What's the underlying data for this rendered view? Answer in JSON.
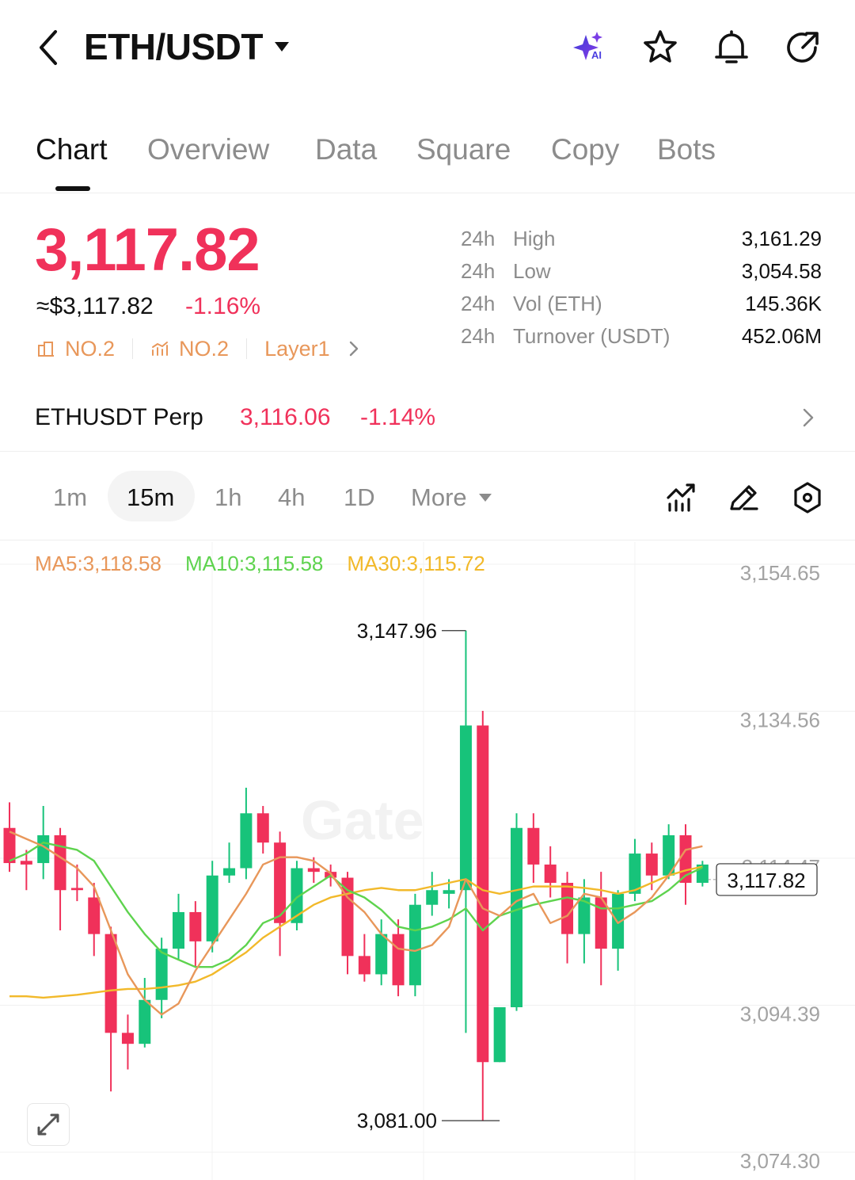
{
  "header": {
    "pair": "ETH/USDT",
    "icons": [
      "back-arrow-icon",
      "caret-down-icon",
      "ai-sparkle-icon",
      "star-icon",
      "bell-icon",
      "share-icon"
    ],
    "ai_badge": "AI"
  },
  "tabs": [
    {
      "label": "Chart",
      "active": true
    },
    {
      "label": "Overview"
    },
    {
      "label": "Data"
    },
    {
      "label": "Square"
    },
    {
      "label": "Copy"
    },
    {
      "label": "Bots"
    }
  ],
  "price": {
    "last": "3,117.82",
    "usd": "≈$3,117.82",
    "change_pct": "-1.16%",
    "rank1": "NO.2",
    "rank2": "NO.2",
    "category": "Layer1"
  },
  "stats": [
    {
      "prefix": "24h",
      "label": "High",
      "value": "3,161.29"
    },
    {
      "prefix": "24h",
      "label": "Low",
      "value": "3,054.58"
    },
    {
      "prefix": "24h",
      "label": "Vol (ETH)",
      "value": "145.36K"
    },
    {
      "prefix": "24h",
      "label": "Turnover (USDT)",
      "value": "452.06M"
    }
  ],
  "perp": {
    "name": "ETHUSDT Perp",
    "price": "3,116.06",
    "change_pct": "-1.14%"
  },
  "intervals": [
    {
      "label": "1m"
    },
    {
      "label": "15m",
      "active": true
    },
    {
      "label": "1h"
    },
    {
      "label": "4h"
    },
    {
      "label": "1D"
    },
    {
      "label": "More"
    }
  ],
  "tools": [
    "indicator-icon",
    "draw-pen-icon",
    "settings-hexagon-icon"
  ],
  "colors": {
    "up": "#17c37a",
    "down": "#f0315a",
    "ma5": "#e8975a",
    "ma10": "#5ed34e",
    "ma30": "#f2b92a"
  },
  "chart_data": {
    "type": "candlestick",
    "interval": "15m",
    "ma_legend": {
      "ma5": "MA5:3,118.58",
      "ma10": "MA10:3,115.58",
      "ma30": "MA30:3,115.72"
    },
    "y_axis_labels": [
      "3,154.65",
      "3,134.56",
      "3,114.47",
      "3,094.39",
      "3,074.30"
    ],
    "ylim": [
      3074.3,
      3154.65
    ],
    "current_price_label": "3,117.82",
    "max_label": "3,147.96",
    "min_label": "3,081.00",
    "candles": [
      [
        3121.0,
        3124.5,
        3115.0,
        3116.2
      ],
      [
        3116.5,
        3118.0,
        3112.5,
        3116.0
      ],
      [
        3116.2,
        3124.0,
        3114.0,
        3120.0
      ],
      [
        3120.0,
        3121.0,
        3107.0,
        3112.5
      ],
      [
        3112.8,
        3116.0,
        3111.0,
        3112.5
      ],
      [
        3111.5,
        3113.5,
        3103.5,
        3106.5
      ],
      [
        3106.5,
        3107.5,
        3085.0,
        3093.0
      ],
      [
        3093.0,
        3095.5,
        3088.0,
        3091.5
      ],
      [
        3091.5,
        3100.5,
        3091.0,
        3097.5
      ],
      [
        3097.5,
        3106.0,
        3095.0,
        3104.5
      ],
      [
        3104.5,
        3112.0,
        3103.0,
        3109.5
      ],
      [
        3109.5,
        3111.0,
        3102.0,
        3105.5
      ],
      [
        3105.5,
        3116.5,
        3104.0,
        3114.5
      ],
      [
        3114.5,
        3119.0,
        3113.5,
        3115.5
      ],
      [
        3115.5,
        3126.5,
        3114.0,
        3123.0
      ],
      [
        3123.0,
        3124.0,
        3117.5,
        3119.0
      ],
      [
        3119.0,
        3120.5,
        3103.5,
        3108.0
      ],
      [
        3108.0,
        3116.5,
        3107.0,
        3115.5
      ],
      [
        3115.5,
        3117.0,
        3113.5,
        3115.0
      ],
      [
        3115.0,
        3116.0,
        3113.0,
        3114.2
      ],
      [
        3114.2,
        3115.0,
        3101.0,
        3103.5
      ],
      [
        3103.5,
        3106.5,
        3100.0,
        3101.0
      ],
      [
        3101.0,
        3108.5,
        3099.5,
        3106.5
      ],
      [
        3106.5,
        3108.5,
        3098.0,
        3099.5
      ],
      [
        3099.5,
        3112.0,
        3098.0,
        3110.5
      ],
      [
        3110.5,
        3115.0,
        3109.0,
        3112.5
      ],
      [
        3112.0,
        3114.0,
        3110.0,
        3112.5
      ],
      [
        3112.5,
        3147.96,
        3093.0,
        3135.0
      ],
      [
        3135.0,
        3137.0,
        3081.0,
        3089.0
      ],
      [
        3089.0,
        3096.5,
        3089.0,
        3096.5
      ],
      [
        3096.5,
        3123.0,
        3096.0,
        3121.0
      ],
      [
        3121.0,
        3123.0,
        3113.5,
        3116.0
      ],
      [
        3116.0,
        3118.5,
        3111.5,
        3113.5
      ],
      [
        3113.5,
        3115.0,
        3102.5,
        3106.5
      ],
      [
        3106.5,
        3114.0,
        3102.5,
        3111.5
      ],
      [
        3111.5,
        3115.0,
        3099.5,
        3104.5
      ],
      [
        3104.5,
        3112.5,
        3101.5,
        3112.0
      ],
      [
        3112.0,
        3119.5,
        3111.0,
        3117.5
      ],
      [
        3117.5,
        3119.0,
        3112.5,
        3114.5
      ],
      [
        3114.5,
        3121.5,
        3114.0,
        3120.0
      ],
      [
        3120.0,
        3121.5,
        3110.5,
        3113.5
      ],
      [
        3113.5,
        3116.5,
        3113.0,
        3116.0
      ]
    ],
    "ma5_series": [
      3120.5,
      3119.5,
      3118.5,
      3117.0,
      3115.5,
      3113.0,
      3107.0,
      3101.0,
      3097.5,
      3095.5,
      3097.0,
      3101.5,
      3105.0,
      3108.5,
      3112.0,
      3116.0,
      3117.0,
      3117.0,
      3116.5,
      3114.8,
      3111.5,
      3109.5,
      3106.5,
      3104.5,
      3104.2,
      3105.0,
      3107.5,
      3114.0,
      3110.0,
      3109.0,
      3111.0,
      3112.0,
      3108.0,
      3109.0,
      3112.0,
      3111.5,
      3108.0,
      3109.5,
      3111.5,
      3114.5,
      3118.0,
      3118.5
    ],
    "ma10_series": [
      3116.5,
      3117.5,
      3119.0,
      3118.5,
      3118.0,
      3116.5,
      3113.0,
      3109.5,
      3106.5,
      3104.0,
      3103.0,
      3102.0,
      3102.0,
      3103.0,
      3105.0,
      3108.0,
      3109.0,
      3111.5,
      3113.0,
      3114.5,
      3112.5,
      3111.5,
      3109.8,
      3107.5,
      3107.0,
      3107.5,
      3108.5,
      3110.0,
      3107.0,
      3109.0,
      3109.8,
      3110.5,
      3111.0,
      3111.5,
      3111.0,
      3110.0,
      3110.0,
      3110.5,
      3111.0,
      3112.5,
      3114.5,
      3115.58
    ],
    "ma30_series": [
      3098.0,
      3098.0,
      3097.8,
      3098.0,
      3098.2,
      3098.5,
      3098.8,
      3099.0,
      3099.0,
      3099.2,
      3099.5,
      3100.0,
      3101.0,
      3102.5,
      3104.0,
      3106.0,
      3107.5,
      3109.0,
      3110.5,
      3111.5,
      3112.0,
      3112.5,
      3112.8,
      3112.5,
      3112.5,
      3113.0,
      3113.5,
      3114.0,
      3112.5,
      3112.0,
      3112.5,
      3113.0,
      3113.0,
      3113.0,
      3112.8,
      3112.5,
      3112.0,
      3112.5,
      3113.5,
      3114.5,
      3115.2,
      3115.72
    ]
  }
}
